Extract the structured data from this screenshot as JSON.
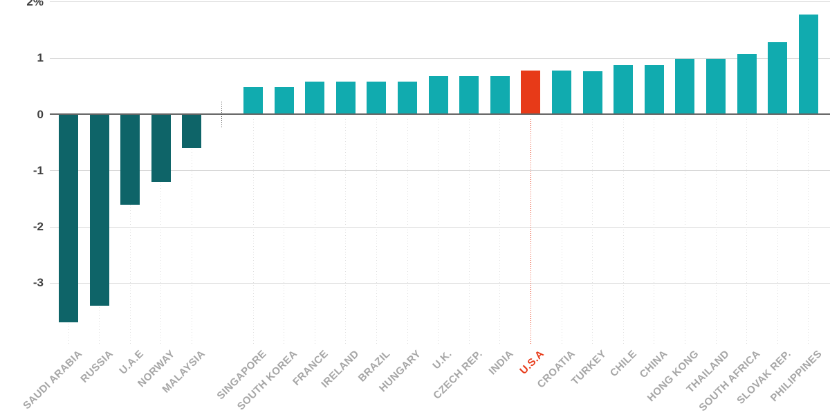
{
  "chart_data": {
    "type": "bar",
    "title": "",
    "unit": "%",
    "categories": [
      "SAUDI ARABIA",
      "RUSSIA",
      "U.A.E",
      "NORWAY",
      "MALAYSIA",
      "SINGAPORE",
      "SOUTH KOREA",
      "FRANCE",
      "IRELAND",
      "BRAZIL",
      "HUNGARY",
      "U.K.",
      "CZECH REP.",
      "INDIA",
      "U.S.A",
      "CROATIA",
      "TURKEY",
      "CHILE",
      "CHINA",
      "HONG KONG",
      "THAILAND",
      "SOUTH AFRICA",
      "SLOVAK REP.",
      "PHILIPPINES"
    ],
    "values": [
      -3.7,
      -3.4,
      -1.6,
      -1.2,
      -0.6,
      0.48,
      0.48,
      0.58,
      0.58,
      0.58,
      0.58,
      0.68,
      0.68,
      0.68,
      0.78,
      0.78,
      0.77,
      0.88,
      0.88,
      0.99,
      0.99,
      1.08,
      1.29,
      1.78
    ],
    "highlight_category": "U.S.A",
    "highlight_index": 14,
    "group_split_index": 5,
    "y_ticks": [
      {
        "label": "2%",
        "value": 2
      },
      {
        "label": "1",
        "value": 1
      },
      {
        "label": "0",
        "value": 0
      },
      {
        "label": "-1",
        "value": -1
      },
      {
        "label": "-2",
        "value": -2
      },
      {
        "label": "-3",
        "value": -3
      }
    ],
    "ylim": [
      -4.1,
      2.05
    ],
    "grid": "horizontal-solid-plus-dotted-column-guides-below-axis",
    "legend": "none",
    "colors": {
      "negative": "#0e6468",
      "positive": "#11abaf",
      "highlight": "#e73a18",
      "gridline": "#d9d9d9",
      "zero_line": "#646464",
      "column_dots": "#dedede",
      "separator": "#4a4a4a",
      "axis_label": "#3f3f3f",
      "category_label": "#a6a6a6"
    }
  }
}
